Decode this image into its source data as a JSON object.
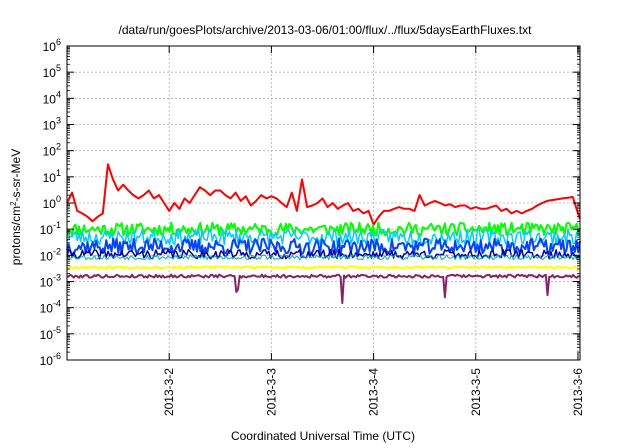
{
  "chart_data": {
    "type": "line",
    "title": "/data/run/goesPlots/archive/2013-03-06/01:00/flux/../flux/5daysEarthFluxes.txt",
    "xlabel": "Coordinated Universal Time (UTC)",
    "ylabel_parts": {
      "before": "protons/cm",
      "sup": "2",
      "after": "-s-sr-MeV"
    },
    "xlim": [
      0,
      5.02
    ],
    "x_ticks": [
      {
        "x": 1,
        "label": "2013-3-2"
      },
      {
        "x": 2,
        "label": "2013-3-3"
      },
      {
        "x": 3,
        "label": "2013-3-4"
      },
      {
        "x": 4,
        "label": "2013-3-5"
      },
      {
        "x": 5,
        "label": "2013-3-6"
      }
    ],
    "ylim_exp": [
      -6,
      6
    ],
    "yscale": "log",
    "y_ticks": [
      {
        "base": "10",
        "exp": "-6"
      },
      {
        "base": "10",
        "exp": "-5"
      },
      {
        "base": "10",
        "exp": "-4"
      },
      {
        "base": "10",
        "exp": "-3"
      },
      {
        "base": "10",
        "exp": "-2"
      },
      {
        "base": "10",
        "exp": "-1"
      },
      {
        "base": "10",
        "exp": "0"
      },
      {
        "base": "10",
        "exp": "1"
      },
      {
        "base": "10",
        "exp": "2"
      },
      {
        "base": "10",
        "exp": "3"
      },
      {
        "base": "10",
        "exp": "4"
      },
      {
        "base": "10",
        "exp": "5"
      },
      {
        "base": "10",
        "exp": "6"
      }
    ],
    "grid": true,
    "series": [
      {
        "color": "#ff0000",
        "width": 2,
        "x": [
          0,
          0.05,
          0.1,
          0.15,
          0.2,
          0.25,
          0.3,
          0.35,
          0.4,
          0.45,
          0.5,
          0.55,
          0.6,
          0.65,
          0.7,
          0.75,
          0.8,
          0.85,
          0.9,
          0.95,
          1.0,
          1.05,
          1.1,
          1.15,
          1.2,
          1.25,
          1.3,
          1.35,
          1.4,
          1.45,
          1.5,
          1.55,
          1.6,
          1.65,
          1.7,
          1.75,
          1.8,
          1.85,
          1.9,
          1.95,
          2.0,
          2.05,
          2.1,
          2.15,
          2.2,
          2.25,
          2.3,
          2.35,
          2.4,
          2.45,
          2.5,
          2.55,
          2.6,
          2.65,
          2.7,
          2.75,
          2.8,
          2.85,
          2.9,
          2.95,
          3.0,
          3.05,
          3.1,
          3.15,
          3.2,
          3.25,
          3.3,
          3.35,
          3.4,
          3.45,
          3.5,
          3.55,
          3.6,
          3.65,
          3.7,
          3.75,
          3.8,
          3.85,
          3.9,
          3.95,
          4.0,
          4.05,
          4.1,
          4.15,
          4.2,
          4.25,
          4.3,
          4.35,
          4.4,
          4.45,
          4.5,
          4.55,
          4.6,
          4.65,
          4.7,
          4.75,
          4.8,
          4.85,
          4.9,
          4.95,
          5.0,
          5.02
        ],
        "y": [
          1.0,
          2.5,
          0.5,
          0.4,
          0.3,
          0.2,
          0.3,
          0.4,
          30,
          8,
          3,
          5,
          3,
          2,
          1.5,
          2,
          3,
          1.5,
          2,
          1.0,
          0.5,
          1.0,
          0.6,
          1.5,
          1.0,
          2,
          4,
          3,
          2,
          3,
          3,
          2,
          1.5,
          2.5,
          1.2,
          1.8,
          0.8,
          1.2,
          2,
          1.5,
          1.8,
          1.5,
          1.0,
          0.7,
          2.5,
          0.5,
          8,
          0.7,
          0.8,
          1.0,
          1.5,
          0.7,
          1.0,
          0.6,
          0.8,
          1.0,
          0.5,
          0.6,
          0.4,
          0.5,
          0.15,
          0.3,
          0.5,
          0.5,
          0.6,
          0.7,
          0.6,
          0.6,
          0.5,
          2,
          0.8,
          1.0,
          1.2,
          1.0,
          0.8,
          0.9,
          0.7,
          0.8,
          0.8,
          0.6,
          0.7,
          0.6,
          0.6,
          0.7,
          0.8,
          0.5,
          0.6,
          0.4,
          0.5,
          0.4,
          0.5,
          0.6,
          0.8,
          1.0,
          1.2,
          1.3,
          1.4,
          1.5,
          1.6,
          1.7,
          0.4,
          0.25
        ]
      },
      {
        "color": "#00ff00",
        "width": 2,
        "base": 0.1,
        "jitter": 0.5,
        "seed": 11
      },
      {
        "color": "#00ccff",
        "width": 1.5,
        "base": 0.05,
        "jitter": 0.6,
        "seed": 23
      },
      {
        "color": "#0044ff",
        "width": 2,
        "base": 0.022,
        "jitter": 0.6,
        "seed": 37
      },
      {
        "color": "#0000aa",
        "width": 1.5,
        "base": 0.011,
        "jitter": 0.35,
        "seed": 41
      },
      {
        "color": "#00aaaa",
        "width": 1,
        "base": 0.0085,
        "jitter": 0.2,
        "seed": 53
      },
      {
        "color": "#ffff00",
        "width": 2,
        "base": 0.0035,
        "jitter": 0.08,
        "seed": 67
      },
      {
        "color": "#882266",
        "width": 2,
        "base": 0.0016,
        "jitter": 0.12,
        "seed": 79,
        "dips": [
          {
            "x": 1.65,
            "y": 0.0004
          },
          {
            "x": 1.68,
            "y": 0.0005
          },
          {
            "x": 2.7,
            "y": 0.00015
          },
          {
            "x": 3.7,
            "y": 0.00025
          },
          {
            "x": 4.7,
            "y": 0.0003
          }
        ]
      }
    ]
  }
}
